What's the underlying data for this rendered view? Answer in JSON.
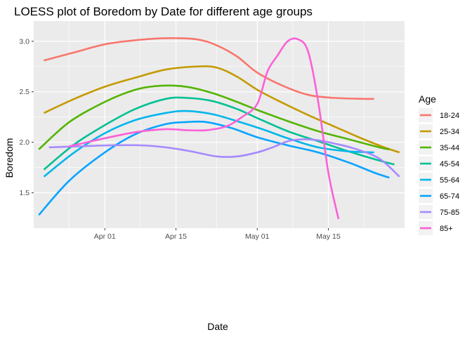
{
  "chart_data": {
    "type": "line",
    "title": "LOESS plot of Boredom by Date for different age groups",
    "xlabel": "Date",
    "ylabel": "Boredom",
    "x_tick_labels": [
      "Apr 01",
      "Apr 15",
      "May 01",
      "May 15"
    ],
    "x_ticks": [
      "2020-04-01",
      "2020-04-15",
      "2020-05-01",
      "2020-05-15"
    ],
    "xlim": [
      "2020-03-18",
      "2020-05-30"
    ],
    "y_ticks": [
      1.5,
      2.0,
      2.5,
      3.0
    ],
    "ylim": [
      1.15,
      3.2
    ],
    "grid": true,
    "panel_background": "#EBEBEB",
    "legend": {
      "title": "Age",
      "position": "right"
    },
    "series": [
      {
        "name": "18-24",
        "color": "#F8766D",
        "x": [
          "2020-03-20",
          "2020-03-26",
          "2020-04-01",
          "2020-04-07",
          "2020-04-13",
          "2020-04-19",
          "2020-04-23",
          "2020-04-27",
          "2020-05-01",
          "2020-05-06",
          "2020-05-11",
          "2020-05-16",
          "2020-05-22",
          "2020-05-24"
        ],
        "y": [
          2.81,
          2.89,
          2.97,
          3.01,
          3.03,
          3.02,
          2.96,
          2.85,
          2.69,
          2.56,
          2.47,
          2.44,
          2.43,
          2.43
        ]
      },
      {
        "name": "25-34",
        "color": "#C49A00",
        "x": [
          "2020-03-20",
          "2020-03-26",
          "2020-04-01",
          "2020-04-07",
          "2020-04-13",
          "2020-04-19",
          "2020-04-23",
          "2020-04-27",
          "2020-05-01",
          "2020-05-06",
          "2020-05-11",
          "2020-05-16",
          "2020-05-21",
          "2020-05-26",
          "2020-05-29"
        ],
        "y": [
          2.29,
          2.43,
          2.55,
          2.64,
          2.72,
          2.75,
          2.74,
          2.65,
          2.52,
          2.39,
          2.27,
          2.16,
          2.05,
          1.95,
          1.9
        ]
      },
      {
        "name": "35-44",
        "color": "#53B400",
        "x": [
          "2020-03-19",
          "2020-03-25",
          "2020-04-01",
          "2020-04-07",
          "2020-04-12",
          "2020-04-17",
          "2020-04-22",
          "2020-04-27",
          "2020-05-01",
          "2020-05-07",
          "2020-05-13",
          "2020-05-19",
          "2020-05-25",
          "2020-05-27"
        ],
        "y": [
          1.93,
          2.2,
          2.4,
          2.52,
          2.56,
          2.55,
          2.49,
          2.4,
          2.32,
          2.21,
          2.11,
          2.03,
          1.95,
          1.93
        ]
      },
      {
        "name": "45-54",
        "color": "#00C094",
        "x": [
          "2020-03-20",
          "2020-03-26",
          "2020-04-01",
          "2020-04-07",
          "2020-04-13",
          "2020-04-17",
          "2020-04-22",
          "2020-04-27",
          "2020-05-01",
          "2020-05-07",
          "2020-05-13",
          "2020-05-19",
          "2020-05-25",
          "2020-05-28"
        ],
        "y": [
          1.73,
          1.98,
          2.17,
          2.33,
          2.43,
          2.44,
          2.41,
          2.33,
          2.24,
          2.11,
          2.01,
          1.91,
          1.82,
          1.78
        ]
      },
      {
        "name": "55-64",
        "color": "#00B6EB",
        "x": [
          "2020-03-20",
          "2020-03-26",
          "2020-04-01",
          "2020-04-07",
          "2020-04-13",
          "2020-04-17",
          "2020-04-22",
          "2020-04-27",
          "2020-05-02",
          "2020-05-07",
          "2020-05-13",
          "2020-05-19",
          "2020-05-24"
        ],
        "y": [
          1.66,
          1.9,
          2.09,
          2.22,
          2.29,
          2.31,
          2.28,
          2.21,
          2.13,
          2.04,
          1.95,
          1.91,
          1.9
        ]
      },
      {
        "name": "65-74",
        "color": "#06A4FF",
        "x": [
          "2020-03-19",
          "2020-03-25",
          "2020-04-01",
          "2020-04-07",
          "2020-04-13",
          "2020-04-17",
          "2020-04-21",
          "2020-04-26",
          "2020-05-01",
          "2020-05-07",
          "2020-05-13",
          "2020-05-19",
          "2020-05-24",
          "2020-05-27"
        ],
        "y": [
          1.28,
          1.62,
          1.9,
          2.08,
          2.18,
          2.2,
          2.2,
          2.14,
          2.05,
          1.97,
          1.9,
          1.8,
          1.7,
          1.65
        ]
      },
      {
        "name": "75-85",
        "color": "#A58AFF",
        "x": [
          "2020-03-21",
          "2020-03-27",
          "2020-04-02",
          "2020-04-08",
          "2020-04-13",
          "2020-04-18",
          "2020-04-23",
          "2020-04-27",
          "2020-05-01",
          "2020-05-04",
          "2020-05-07",
          "2020-05-10",
          "2020-05-13",
          "2020-05-16",
          "2020-05-20",
          "2020-05-25",
          "2020-05-29"
        ],
        "y": [
          1.95,
          1.96,
          1.97,
          1.97,
          1.95,
          1.91,
          1.86,
          1.86,
          1.9,
          1.95,
          2.01,
          2.03,
          2.02,
          1.99,
          1.94,
          1.84,
          1.66
        ]
      },
      {
        "name": "85+",
        "color": "#FB61D7",
        "x": [
          "2020-03-25",
          "2020-04-01",
          "2020-04-07",
          "2020-04-13",
          "2020-04-17",
          "2020-04-21",
          "2020-04-25",
          "2020-04-28",
          "2020-05-01",
          "2020-05-03",
          "2020-05-05",
          "2020-05-07",
          "2020-05-09",
          "2020-05-11",
          "2020-05-13",
          "2020-05-15",
          "2020-05-17"
        ],
        "y": [
          1.96,
          2.04,
          2.1,
          2.13,
          2.12,
          2.12,
          2.16,
          2.25,
          2.38,
          2.7,
          2.86,
          3.0,
          3.02,
          2.9,
          2.4,
          1.7,
          1.24
        ]
      }
    ]
  }
}
